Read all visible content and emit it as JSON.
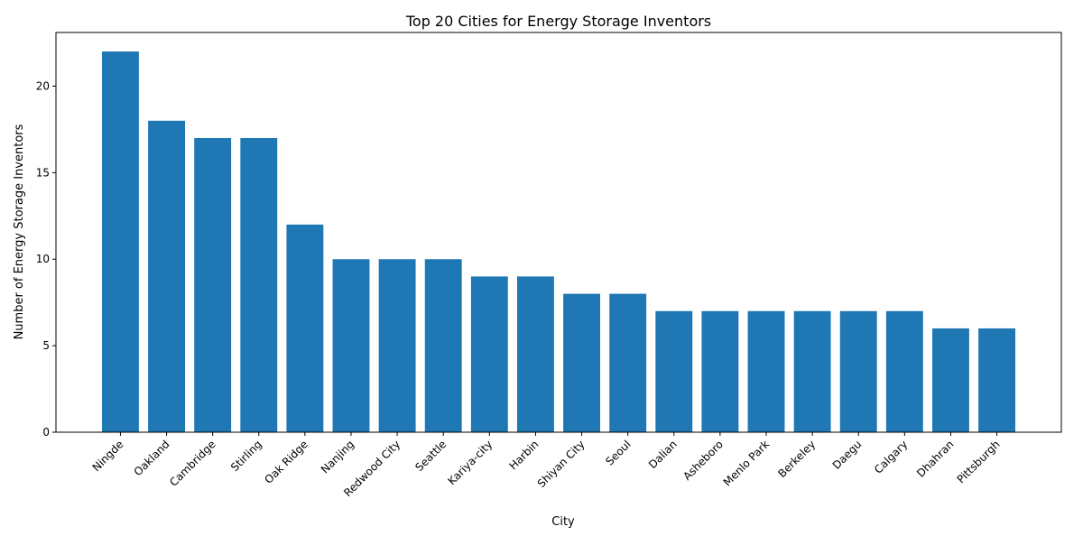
{
  "chart_data": {
    "type": "bar",
    "title": "Top 20 Cities for Energy Storage Inventors",
    "xlabel": "City",
    "ylabel": "Number of Energy Storage Inventors",
    "categories": [
      "Ningde",
      "Oakland",
      "Cambridge",
      "Stirling",
      "Oak Ridge",
      "Nanjing",
      "Redwood City",
      "Seattle",
      "Kariya-city",
      "Harbin",
      "Shiyan City",
      "Seoul",
      "Dalian",
      "Asheboro",
      "Menlo Park",
      "Berkeley",
      "Daegu",
      "Calgary",
      "Dhahran",
      "Pittsburgh"
    ],
    "values": [
      22,
      18,
      17,
      17,
      12,
      10,
      10,
      10,
      9,
      9,
      8,
      8,
      7,
      7,
      7,
      7,
      7,
      7,
      6,
      6
    ],
    "ylim": [
      0,
      23.1
    ],
    "yticks": [
      0,
      5,
      10,
      15,
      20
    ],
    "grid": false,
    "bar_color": "#1f77b4"
  }
}
